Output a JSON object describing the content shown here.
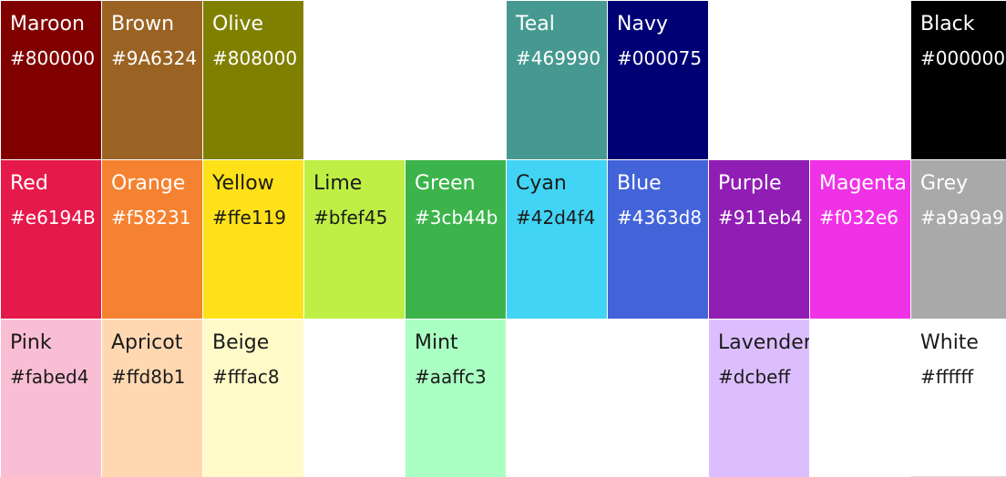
{
  "palette": [
    {
      "name": "Maroon",
      "hex": "#800000",
      "color": "#800000",
      "text": "light"
    },
    {
      "name": "Brown",
      "hex": "#9A6324",
      "color": "#9A6324",
      "text": "light"
    },
    {
      "name": "Olive",
      "hex": "#808000",
      "color": "#808000",
      "text": "light"
    },
    {
      "name": "",
      "hex": "",
      "color": "",
      "text": ""
    },
    {
      "name": "",
      "hex": "",
      "color": "",
      "text": ""
    },
    {
      "name": "Teal",
      "hex": "#469990",
      "color": "#469990",
      "text": "light"
    },
    {
      "name": "Navy",
      "hex": "#000075",
      "color": "#000075",
      "text": "light"
    },
    {
      "name": "",
      "hex": "",
      "color": "",
      "text": ""
    },
    {
      "name": "",
      "hex": "",
      "color": "",
      "text": ""
    },
    {
      "name": "Black",
      "hex": "#000000",
      "color": "#000000",
      "text": "light"
    },
    {
      "name": "Red",
      "hex": "#e6194B",
      "color": "#e6194B",
      "text": "light"
    },
    {
      "name": "Orange",
      "hex": "#f58231",
      "color": "#f58231",
      "text": "light"
    },
    {
      "name": "Yellow",
      "hex": "#ffe119",
      "color": "#ffe119",
      "text": "dark"
    },
    {
      "name": "Lime",
      "hex": "#bfef45",
      "color": "#bfef45",
      "text": "dark"
    },
    {
      "name": "Green",
      "hex": "#3cb44b",
      "color": "#3cb44b",
      "text": "light"
    },
    {
      "name": "Cyan",
      "hex": "#42d4f4",
      "color": "#42d4f4",
      "text": "dark"
    },
    {
      "name": "Blue",
      "hex": "#4363d8",
      "color": "#4363d8",
      "text": "light"
    },
    {
      "name": "Purple",
      "hex": "#911eb4",
      "color": "#911eb4",
      "text": "light"
    },
    {
      "name": "Magenta",
      "hex": "#f032e6",
      "color": "#f032e6",
      "text": "light"
    },
    {
      "name": "Grey",
      "hex": "#a9a9a9",
      "color": "#a9a9a9",
      "text": "light"
    },
    {
      "name": "Pink",
      "hex": "#fabed4",
      "color": "#fabed4",
      "text": "dark"
    },
    {
      "name": "Apricot",
      "hex": "#ffd8b1",
      "color": "#ffd8b1",
      "text": "dark"
    },
    {
      "name": "Beige",
      "hex": "#fffac8",
      "color": "#fffac8",
      "text": "dark"
    },
    {
      "name": "",
      "hex": "",
      "color": "",
      "text": ""
    },
    {
      "name": "Mint",
      "hex": "#aaffc3",
      "color": "#aaffc3",
      "text": "dark"
    },
    {
      "name": "",
      "hex": "",
      "color": "",
      "text": ""
    },
    {
      "name": "",
      "hex": "",
      "color": "",
      "text": ""
    },
    {
      "name": "Lavender",
      "hex": "#dcbeff",
      "color": "#dcbeff",
      "text": "dark"
    },
    {
      "name": "",
      "hex": "",
      "color": "",
      "text": ""
    },
    {
      "name": "White",
      "hex": "#ffffff",
      "color": "#ffffff",
      "text": "dark"
    }
  ]
}
